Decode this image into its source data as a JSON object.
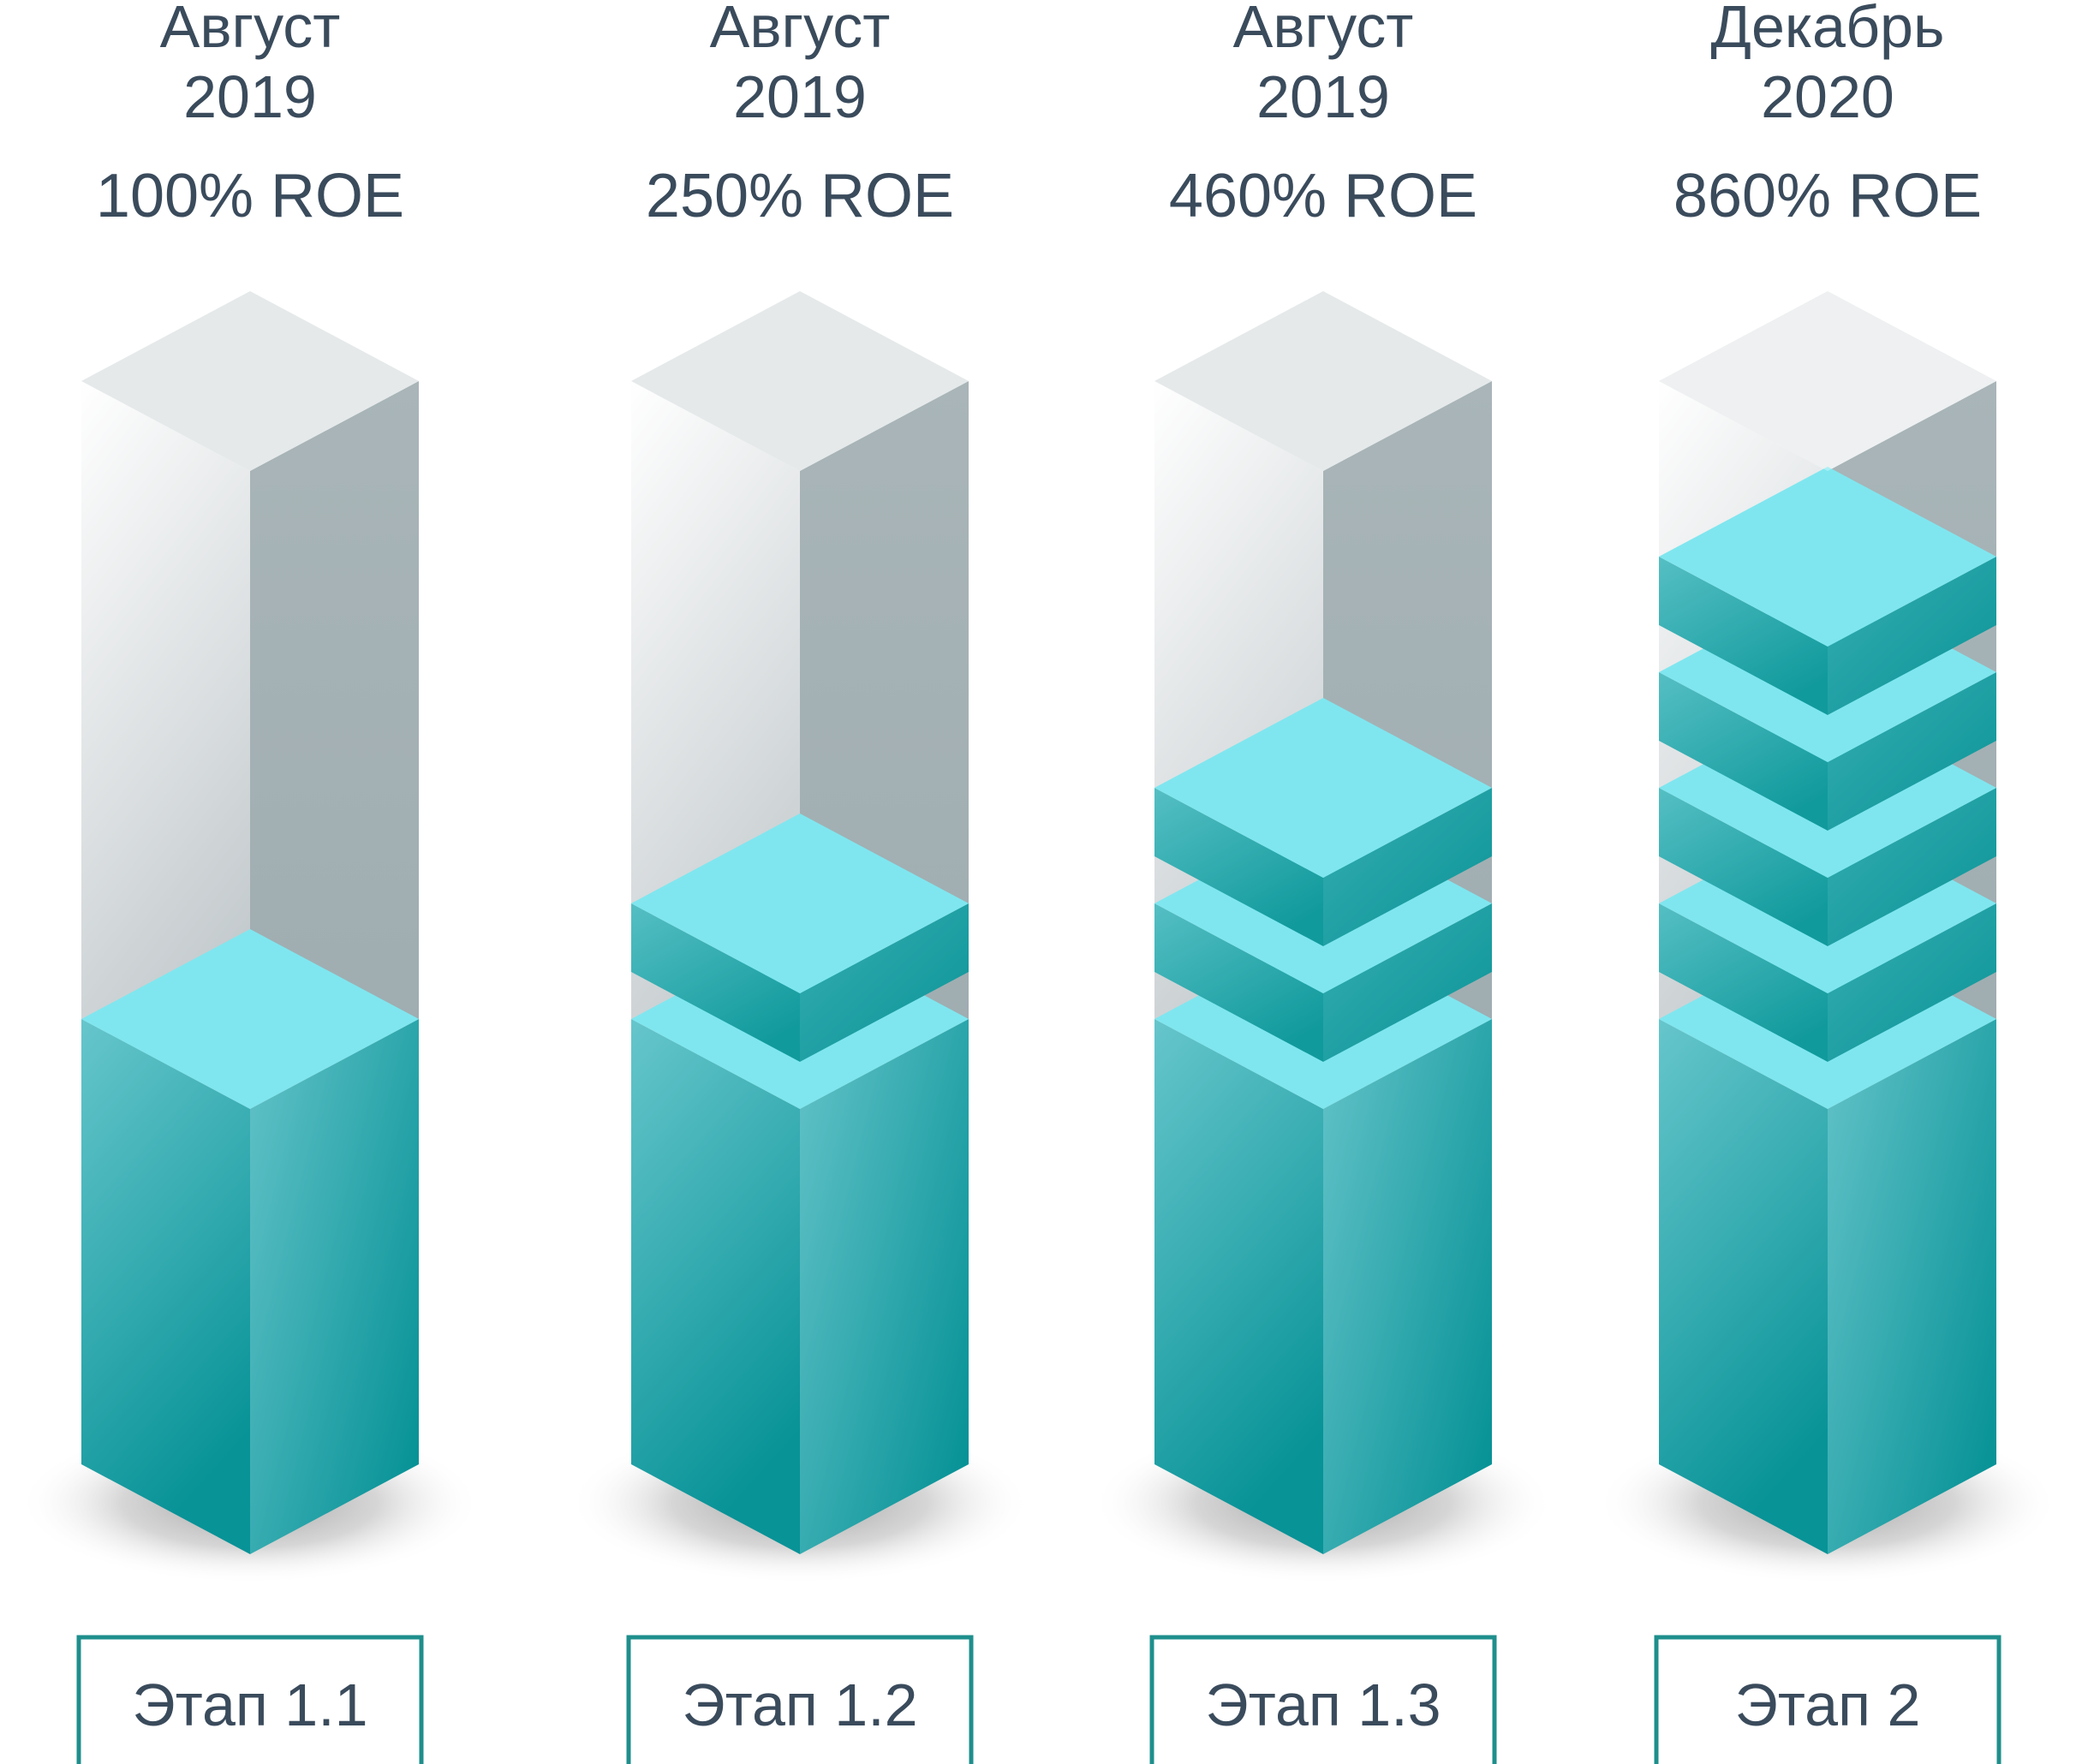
{
  "colors": {
    "accent": "#0b9999",
    "teal_top": "#7fe6ef",
    "glass_top": "#e6eaeb",
    "glass_right": "#a4b1b5",
    "label_border": "#1e8f8c",
    "text": "#3a4b5c"
  },
  "chart_data": {
    "type": "bar",
    "title": "",
    "xlabel": "",
    "ylabel": "",
    "categories": [
      "Этап 1.1",
      "Этап 1.2",
      "Этап 1.3",
      "Этап 2"
    ],
    "series": [
      {
        "values": [
          100,
          250,
          460,
          860
        ],
        "labels": [
          "100% ROE",
          "250% ROE",
          "460% ROE",
          "860% ROE"
        ]
      }
    ],
    "periods": [
      {
        "month": "Август",
        "year": "2019"
      },
      {
        "month": "Август",
        "year": "2019"
      },
      {
        "month": "Август",
        "year": "2019"
      },
      {
        "month": "Декабрь",
        "year": "2020"
      }
    ],
    "stacked_blocks": [
      1,
      2,
      3,
      5
    ],
    "grid": false,
    "legend": "none"
  }
}
